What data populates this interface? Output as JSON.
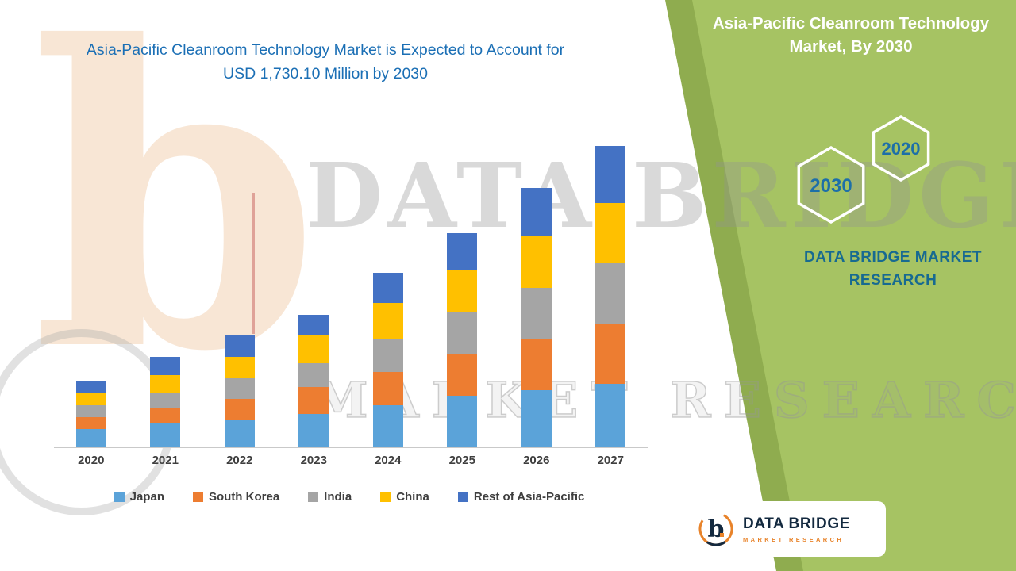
{
  "title": {
    "text": "Asia-Pacific Cleanroom Technology Market is Expected to Account for USD 1,730.10 Million by 2030"
  },
  "side_panel": {
    "heading": "Asia-Pacific Cleanroom Technology Market, By 2030",
    "hexagons": [
      {
        "label": "2030"
      },
      {
        "label": "2020"
      }
    ],
    "brand_text": "DATA BRIDGE MARKET RESEARCH"
  },
  "watermark": {
    "line1": "DATA BRIDGE",
    "line2": "MARKET RESEARCH",
    "letter": "b"
  },
  "logo_card": {
    "letter": "b",
    "brand": "DATA BRIDGE",
    "sub": "MARKET RESEARCH"
  },
  "colors": {
    "panel_green": "#a6c363",
    "panel_green_dark": "#8fac4f",
    "title_blue": "#1b6fb5",
    "hex_label_blue": "#1d6fa8",
    "brand_teal": "#176a91",
    "logo_navy": "#13293f",
    "logo_orange": "#e8832a"
  },
  "chart_data": {
    "type": "bar",
    "stacked": true,
    "title": "Asia-Pacific Cleanroom Technology Market is Expected to Account for USD 1,730.10 Million by 2030",
    "categories": [
      "2020",
      "2021",
      "2022",
      "2023",
      "2024",
      "2025",
      "2026",
      "2027"
    ],
    "series": [
      {
        "name": "Japan",
        "color": "#5ba3d9",
        "values": [
          6,
          8,
          9,
          11,
          14,
          17,
          19,
          21
        ]
      },
      {
        "name": "South Korea",
        "color": "#ed7d31",
        "values": [
          4,
          5,
          7,
          9,
          11,
          14,
          17,
          20
        ]
      },
      {
        "name": "India",
        "color": "#a5a5a5",
        "values": [
          4,
          5,
          7,
          8,
          11,
          14,
          17,
          20
        ]
      },
      {
        "name": "China",
        "color": "#ffc000",
        "values": [
          4,
          6,
          7,
          9,
          12,
          14,
          17,
          20
        ]
      },
      {
        "name": "Rest of Asia-Pacific",
        "color": "#4472c4",
        "values": [
          4,
          6,
          7,
          7,
          10,
          12,
          16,
          19
        ]
      }
    ],
    "totals_estimated_relative_units": [
      22,
      30,
      37,
      44,
      58,
      71,
      86,
      100
    ],
    "xlabel": "",
    "ylabel": "",
    "ylim": [
      0,
      105
    ],
    "grid": false,
    "y_axis_labels_shown": false,
    "legend_position": "bottom"
  }
}
